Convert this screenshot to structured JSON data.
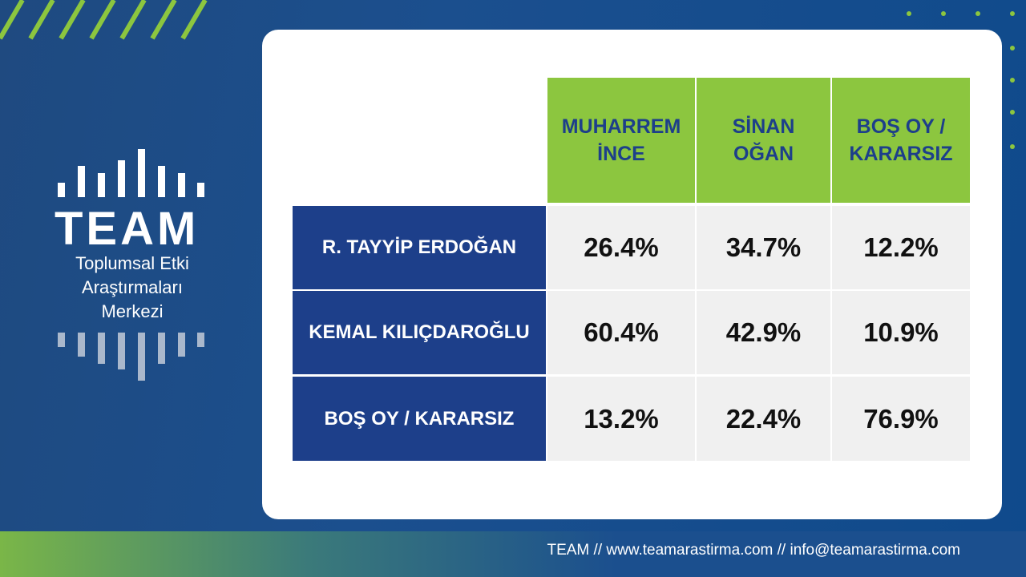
{
  "logo": {
    "title": "TEAM",
    "subtitle_lines": [
      "Toplumsal Etki",
      "Araştırmaları",
      "Merkezi"
    ]
  },
  "table": {
    "columns": [
      "MUHARREM İNCE",
      "SİNAN OĞAN",
      "BOŞ OY / KARARSIZ"
    ],
    "rows": [
      [
        "R. TAYYİP ERDOĞAN",
        "26.4%",
        "34.7%",
        "12.2%"
      ],
      [
        "KEMAL KILIÇDAROĞLU",
        "60.4%",
        "42.9%",
        "10.9%"
      ],
      [
        "BOŞ OY / KARARSIZ",
        "13.2%",
        "22.4%",
        "76.9%"
      ]
    ]
  },
  "footer": "TEAM // www.teamarastirma.com // info@teamarastirma.com"
}
